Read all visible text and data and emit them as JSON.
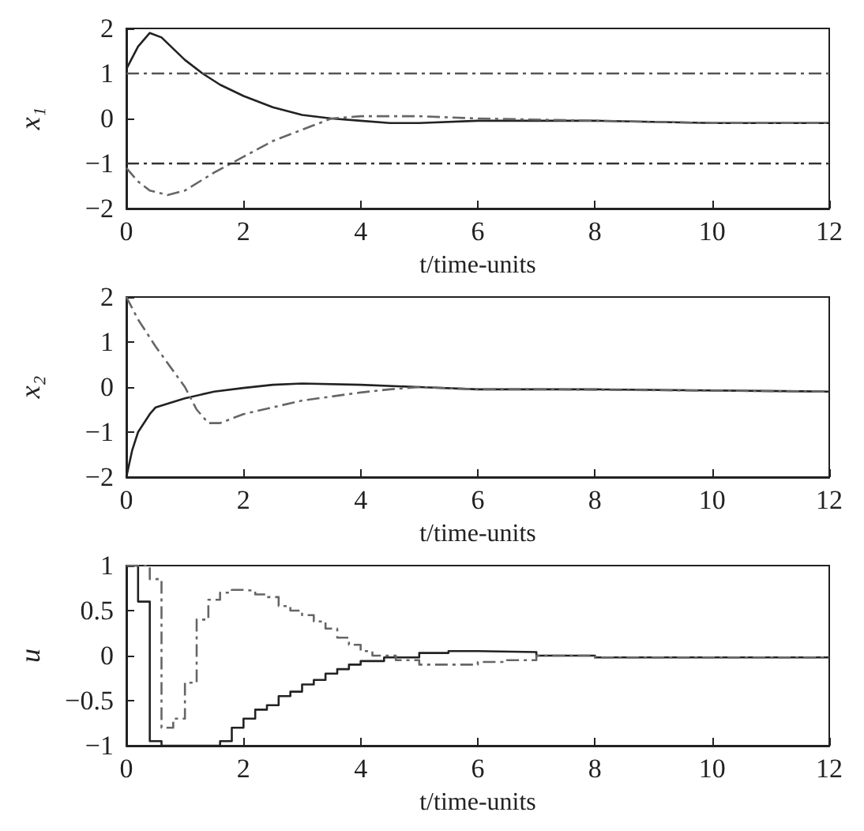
{
  "chart_data": [
    {
      "type": "line",
      "ylabel": "x₁",
      "xlabel": "t/time-units",
      "xlim": [
        0,
        12
      ],
      "xticks": [
        0,
        2,
        4,
        6,
        8,
        10,
        12
      ],
      "ylim": [
        -2,
        2
      ],
      "yticks": [
        -2,
        -1,
        0,
        1,
        2
      ],
      "grid": false,
      "marker": "none",
      "series": [
        {
          "color": "#222222",
          "line_style": "solid",
          "x": [
            0,
            0.2,
            0.4,
            0.6,
            0.8,
            1,
            1.3,
            1.6,
            2,
            2.5,
            3,
            3.5,
            4,
            4.5,
            5,
            6,
            8,
            10,
            12
          ],
          "values": [
            1.1,
            1.6,
            1.9,
            1.8,
            1.55,
            1.3,
            1.0,
            0.75,
            0.5,
            0.25,
            0.08,
            0,
            -0.05,
            -0.1,
            -0.1,
            -0.05,
            -0.05,
            -0.1,
            -0.1
          ]
        },
        {
          "color": "#666666",
          "line_style": "dashed",
          "x": [
            0,
            0.2,
            0.4,
            0.7,
            1,
            1.5,
            2,
            2.5,
            3,
            3.5,
            4,
            5,
            6,
            8,
            10,
            12
          ],
          "values": [
            -1.1,
            -1.4,
            -1.6,
            -1.7,
            -1.6,
            -1.2,
            -0.85,
            -0.5,
            -0.25,
            0,
            0.05,
            0.05,
            0,
            -0.05,
            -0.1,
            -0.1
          ]
        }
      ],
      "ref_lines": [
        {
          "axis": "y",
          "value": 1,
          "color": "#555555",
          "line_style": "dashed"
        },
        {
          "axis": "y",
          "value": -1,
          "color": "#333333",
          "line_style": "dashed"
        }
      ]
    },
    {
      "type": "line",
      "ylabel": "x₂",
      "xlabel": "t/time-units",
      "xlim": [
        0,
        12
      ],
      "xticks": [
        0,
        2,
        4,
        6,
        8,
        10,
        12
      ],
      "ylim": [
        -2,
        2
      ],
      "yticks": [
        -2,
        -1,
        0,
        1,
        2
      ],
      "grid": false,
      "marker": "none",
      "series": [
        {
          "color": "#222222",
          "line_style": "solid",
          "x": [
            0,
            0.1,
            0.2,
            0.4,
            0.5,
            1,
            1.5,
            2,
            2.5,
            3,
            4,
            5,
            6,
            8,
            12
          ],
          "values": [
            -2,
            -1.4,
            -1,
            -0.6,
            -0.45,
            -0.25,
            -0.1,
            -0.02,
            0.05,
            0.08,
            0.05,
            0,
            -0.05,
            -0.05,
            -0.1
          ]
        },
        {
          "color": "#666666",
          "line_style": "dashed",
          "x": [
            0,
            0.2,
            0.5,
            1,
            1.2,
            1.4,
            1.6,
            2,
            3,
            4,
            4.5,
            5,
            6,
            7,
            12
          ],
          "values": [
            2,
            1.5,
            0.9,
            0,
            -0.5,
            -0.8,
            -0.8,
            -0.6,
            -0.3,
            -0.12,
            -0.05,
            0,
            -0.05,
            -0.05,
            -0.1
          ]
        }
      ]
    },
    {
      "type": "step",
      "ylabel": "u",
      "xlabel": "t/time-units",
      "xlim": [
        0,
        12
      ],
      "xticks": [
        0,
        2,
        4,
        6,
        8,
        10,
        12
      ],
      "ylim": [
        -1,
        1
      ],
      "yticks": [
        -1,
        -0.5,
        0,
        0.5,
        1
      ],
      "grid": false,
      "marker": "none",
      "series": [
        {
          "color": "#222222",
          "line_style": "solid",
          "x": [
            0,
            0.2,
            0.4,
            0.6,
            1.6,
            1.8,
            2,
            2.2,
            2.4,
            2.6,
            2.8,
            3,
            3.2,
            3.4,
            3.6,
            3.8,
            4,
            4.4,
            5,
            5.5,
            6,
            7,
            8,
            9,
            10,
            12
          ],
          "values": [
            1,
            0.6,
            -0.95,
            -1,
            -0.95,
            -0.8,
            -0.7,
            -0.6,
            -0.55,
            -0.45,
            -0.4,
            -0.32,
            -0.27,
            -0.2,
            -0.15,
            -0.1,
            -0.06,
            -0.02,
            0.03,
            0.05,
            0.04,
            0,
            -0.02,
            -0.02,
            -0.02,
            -0.03
          ]
        },
        {
          "color": "#666666",
          "line_style": "dashed",
          "x": [
            0,
            0.4,
            0.6,
            0.8,
            1,
            1.2,
            1.4,
            1.6,
            1.8,
            2,
            2.2,
            2.4,
            2.6,
            2.8,
            3,
            3.2,
            3.4,
            3.6,
            3.8,
            4,
            4.2,
            4.6,
            5,
            5.5,
            6,
            6.5,
            7,
            8,
            10,
            12
          ],
          "values": [
            1,
            0.85,
            -0.8,
            -0.7,
            -0.3,
            0.4,
            0.62,
            0.7,
            0.73,
            0.72,
            0.68,
            0.65,
            0.55,
            0.5,
            0.45,
            0.38,
            0.3,
            0.2,
            0.12,
            0.05,
            0,
            -0.05,
            -0.1,
            -0.1,
            -0.07,
            -0.05,
            0,
            -0.02,
            -0.02,
            -0.03
          ]
        }
      ]
    }
  ]
}
